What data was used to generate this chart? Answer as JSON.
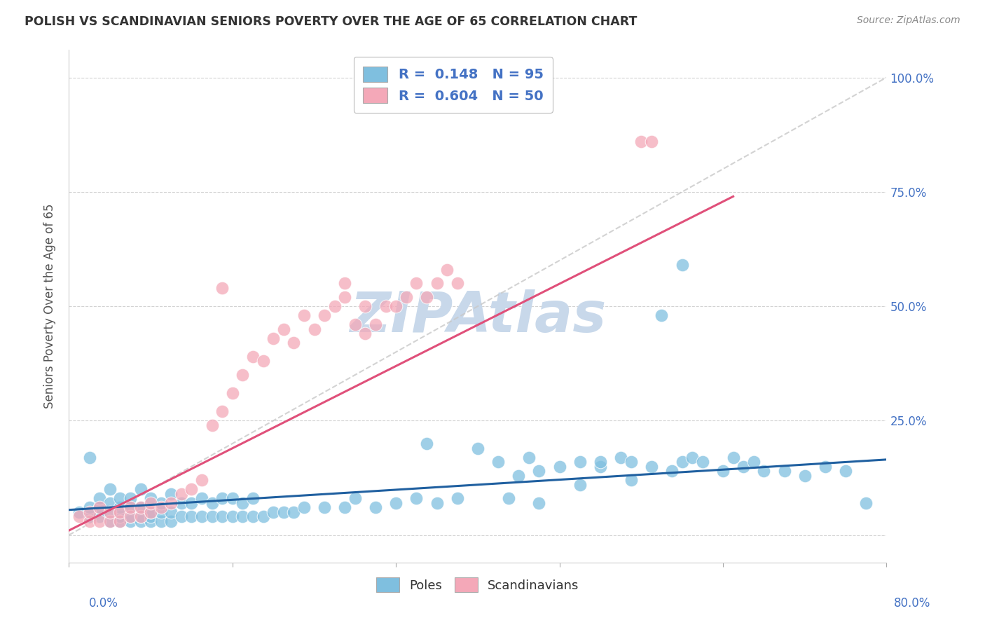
{
  "title": "POLISH VS SCANDINAVIAN SENIORS POVERTY OVER THE AGE OF 65 CORRELATION CHART",
  "source": "Source: ZipAtlas.com",
  "ylabel": "Seniors Poverty Over the Age of 65",
  "xlim": [
    0.0,
    0.8
  ],
  "ylim": [
    -0.06,
    1.06
  ],
  "yticks": [
    0.0,
    0.25,
    0.5,
    0.75,
    1.0
  ],
  "poles_color": "#7fbfdf",
  "scandi_color": "#f4a8b8",
  "poles_line_color": "#2060a0",
  "scandi_line_color": "#e0507a",
  "ref_line_color": "#c8c8c8",
  "watermark": "ZIPAtlas",
  "watermark_color": "#c8d8ea",
  "poles_x": [
    0.01,
    0.02,
    0.02,
    0.02,
    0.03,
    0.03,
    0.03,
    0.04,
    0.04,
    0.04,
    0.04,
    0.05,
    0.05,
    0.05,
    0.05,
    0.06,
    0.06,
    0.06,
    0.06,
    0.07,
    0.07,
    0.07,
    0.07,
    0.08,
    0.08,
    0.08,
    0.08,
    0.09,
    0.09,
    0.09,
    0.1,
    0.1,
    0.1,
    0.11,
    0.11,
    0.12,
    0.12,
    0.13,
    0.13,
    0.14,
    0.14,
    0.15,
    0.15,
    0.16,
    0.16,
    0.17,
    0.17,
    0.18,
    0.18,
    0.19,
    0.2,
    0.21,
    0.22,
    0.23,
    0.25,
    0.27,
    0.28,
    0.3,
    0.32,
    0.34,
    0.35,
    0.36,
    0.38,
    0.4,
    0.42,
    0.44,
    0.46,
    0.48,
    0.5,
    0.52,
    0.54,
    0.55,
    0.57,
    0.59,
    0.6,
    0.61,
    0.62,
    0.64,
    0.65,
    0.66,
    0.67,
    0.68,
    0.7,
    0.72,
    0.74,
    0.76,
    0.78,
    0.6,
    0.58,
    0.45,
    0.5,
    0.52,
    0.55,
    0.46,
    0.43
  ],
  "poles_y": [
    0.05,
    0.04,
    0.06,
    0.17,
    0.04,
    0.06,
    0.08,
    0.03,
    0.05,
    0.07,
    0.1,
    0.03,
    0.04,
    0.06,
    0.08,
    0.03,
    0.04,
    0.06,
    0.08,
    0.03,
    0.04,
    0.06,
    0.1,
    0.03,
    0.04,
    0.05,
    0.08,
    0.03,
    0.05,
    0.07,
    0.03,
    0.05,
    0.09,
    0.04,
    0.07,
    0.04,
    0.07,
    0.04,
    0.08,
    0.04,
    0.07,
    0.04,
    0.08,
    0.04,
    0.08,
    0.04,
    0.07,
    0.04,
    0.08,
    0.04,
    0.05,
    0.05,
    0.05,
    0.06,
    0.06,
    0.06,
    0.08,
    0.06,
    0.07,
    0.08,
    0.2,
    0.07,
    0.08,
    0.19,
    0.16,
    0.13,
    0.14,
    0.15,
    0.16,
    0.15,
    0.17,
    0.16,
    0.15,
    0.14,
    0.16,
    0.17,
    0.16,
    0.14,
    0.17,
    0.15,
    0.16,
    0.14,
    0.14,
    0.13,
    0.15,
    0.14,
    0.07,
    0.59,
    0.48,
    0.17,
    0.11,
    0.16,
    0.12,
    0.07,
    0.08
  ],
  "scandi_x": [
    0.01,
    0.02,
    0.02,
    0.03,
    0.03,
    0.04,
    0.04,
    0.05,
    0.05,
    0.06,
    0.06,
    0.07,
    0.07,
    0.08,
    0.08,
    0.09,
    0.1,
    0.11,
    0.12,
    0.13,
    0.14,
    0.15,
    0.16,
    0.17,
    0.18,
    0.19,
    0.2,
    0.21,
    0.22,
    0.23,
    0.24,
    0.25,
    0.26,
    0.27,
    0.28,
    0.29,
    0.3,
    0.31,
    0.32,
    0.33,
    0.34,
    0.35,
    0.36,
    0.37,
    0.38,
    0.27,
    0.29,
    0.15,
    0.56,
    0.57
  ],
  "scandi_y": [
    0.04,
    0.03,
    0.05,
    0.03,
    0.06,
    0.03,
    0.05,
    0.03,
    0.05,
    0.04,
    0.06,
    0.04,
    0.06,
    0.05,
    0.07,
    0.06,
    0.07,
    0.09,
    0.1,
    0.12,
    0.24,
    0.27,
    0.31,
    0.35,
    0.39,
    0.38,
    0.43,
    0.45,
    0.42,
    0.48,
    0.45,
    0.48,
    0.5,
    0.52,
    0.46,
    0.5,
    0.46,
    0.5,
    0.5,
    0.52,
    0.55,
    0.52,
    0.55,
    0.58,
    0.55,
    0.55,
    0.44,
    0.54,
    0.86,
    0.86
  ],
  "poles_line_x": [
    0.0,
    0.8
  ],
  "poles_line_y": [
    0.055,
    0.165
  ],
  "scandi_line_x": [
    0.0,
    0.65
  ],
  "scandi_line_y": [
    0.01,
    0.74
  ],
  "ref_line_x": [
    0.0,
    0.8
  ],
  "ref_line_y": [
    0.0,
    1.0
  ]
}
